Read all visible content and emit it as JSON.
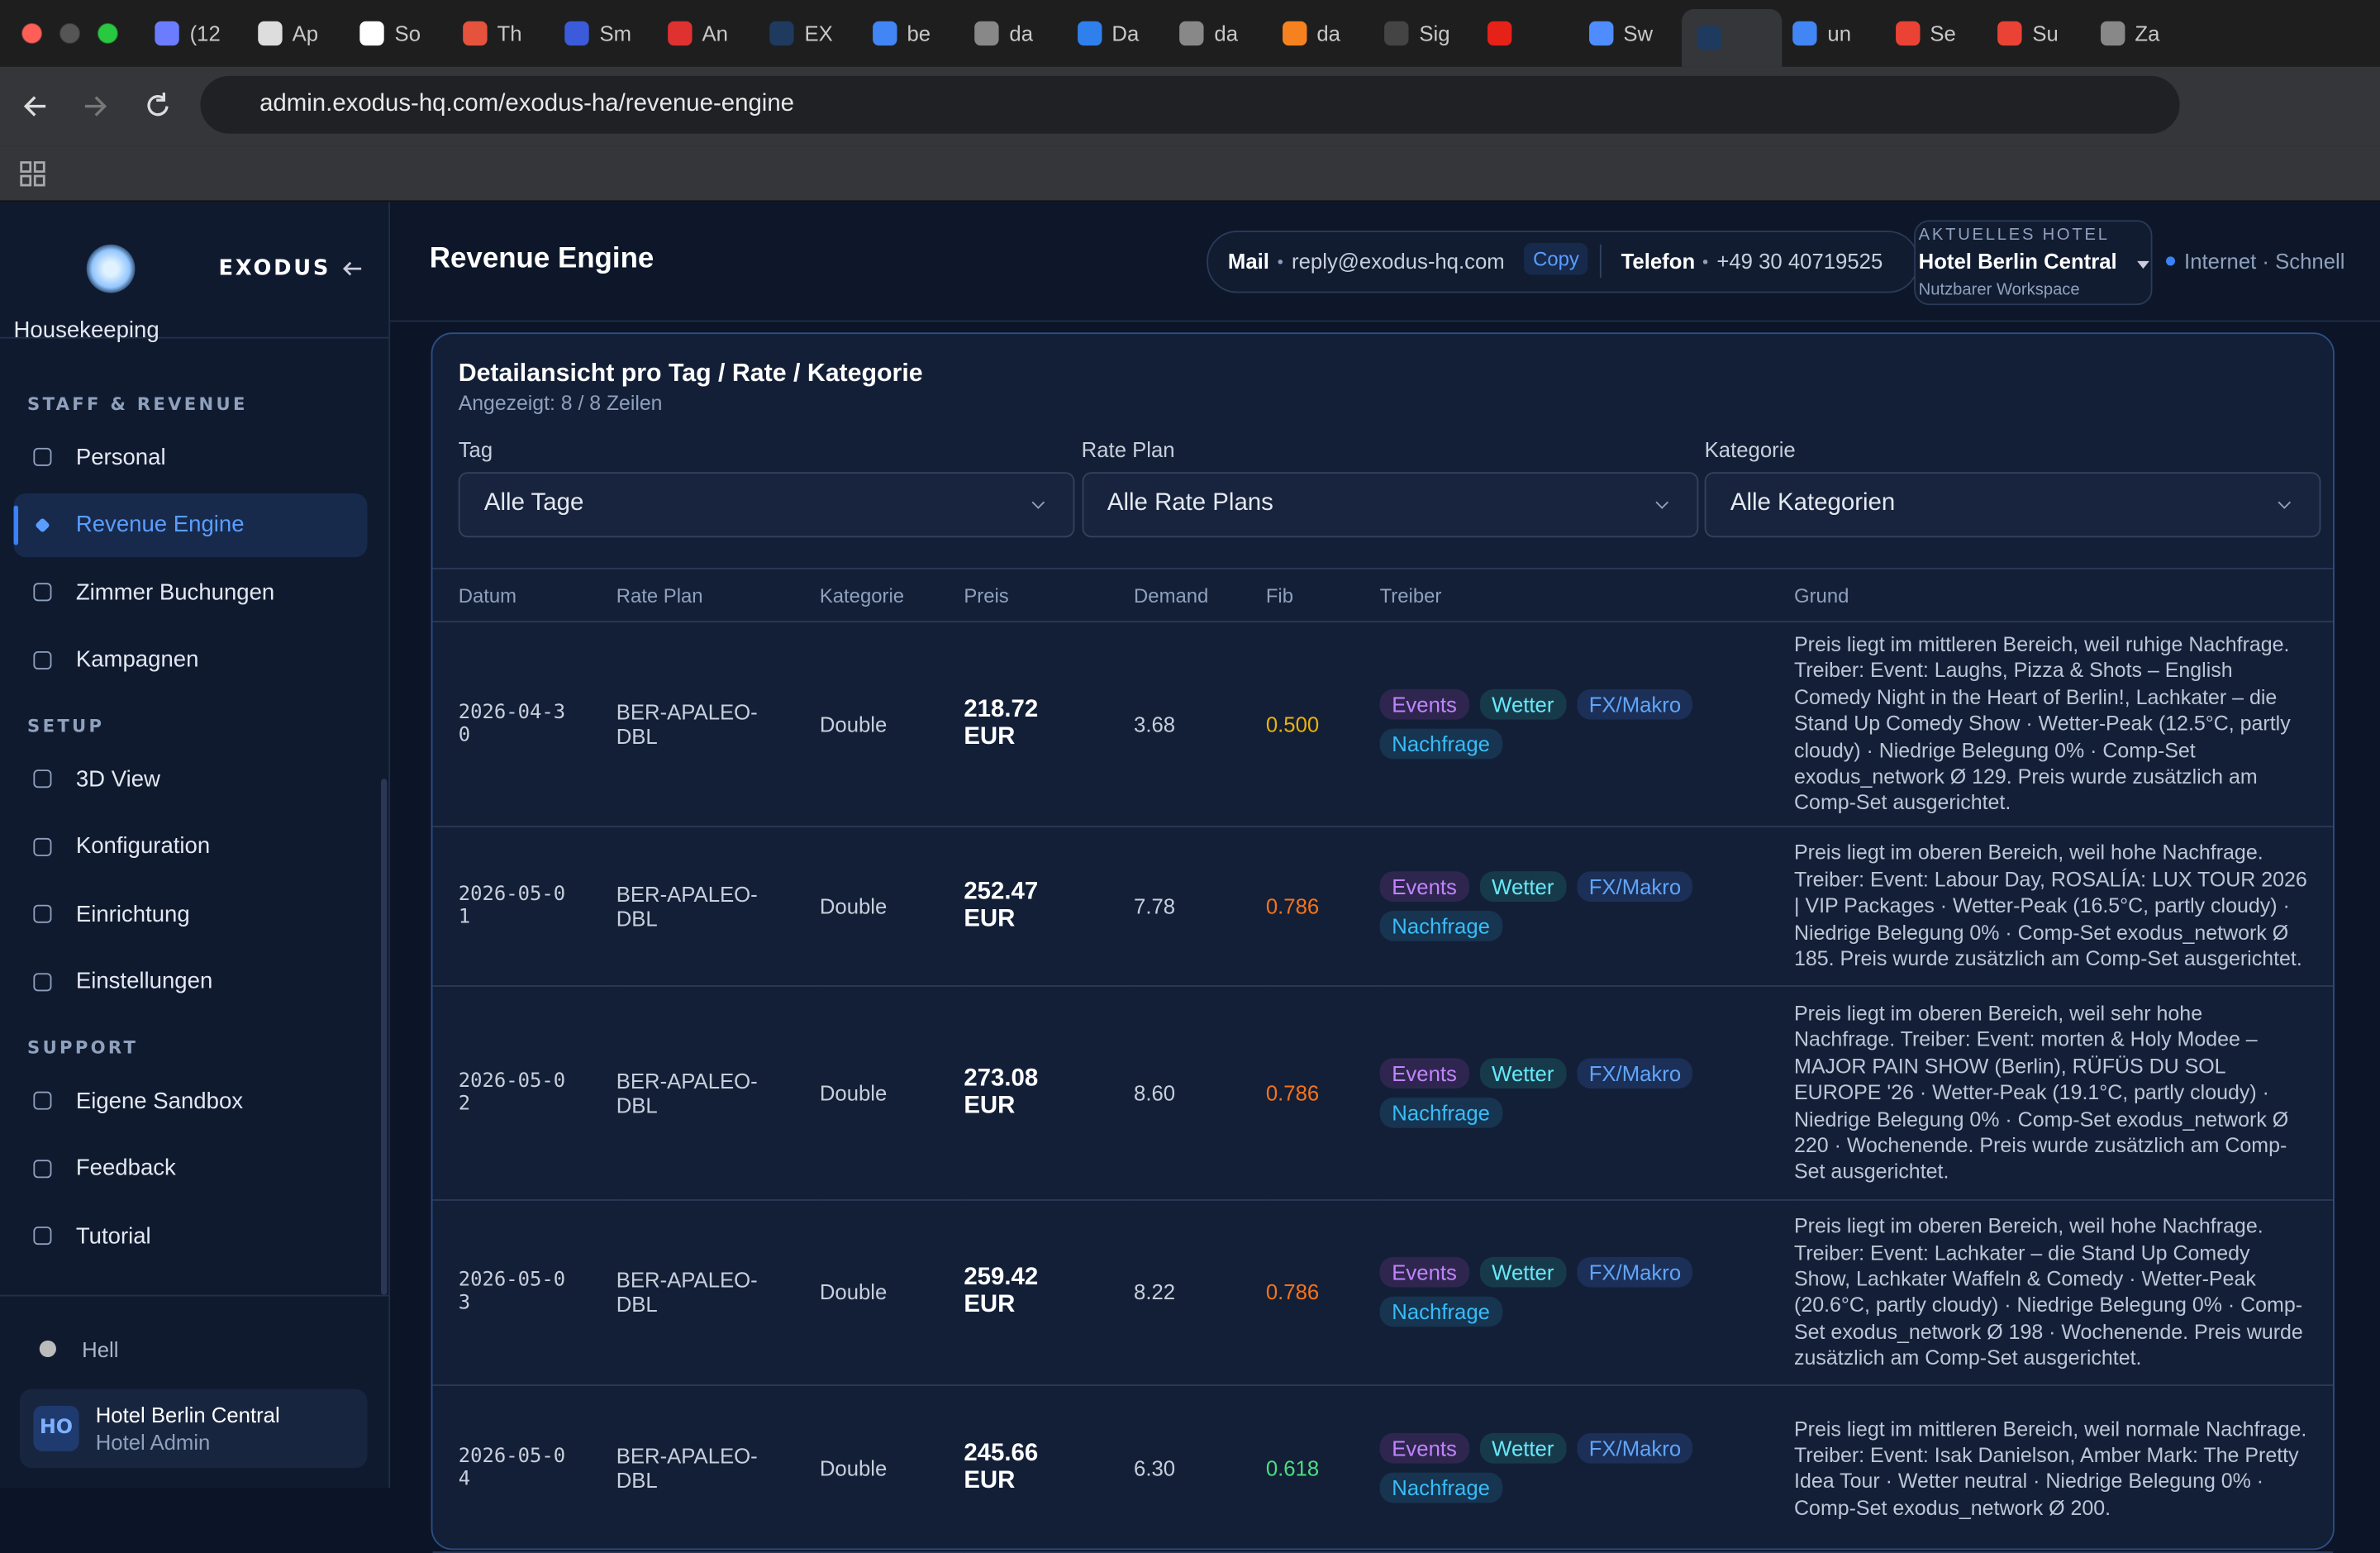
{
  "browser": {
    "tabs": [
      "(12",
      "Ap",
      "So",
      "Th",
      "Sm",
      "An",
      "EX",
      "be",
      "da",
      "Da",
      "da",
      "da",
      "Sig",
      "Sw",
      "un",
      "Se",
      "Su",
      "Za"
    ],
    "url": "admin.exodus-hq.com/exodus-ha/revenue-engine"
  },
  "sidebar": {
    "brand": "EXODUS",
    "cut_item": "Housekeeping",
    "sections": [
      {
        "title": "STAFF & REVENUE",
        "items": [
          "Personal",
          "Revenue Engine",
          "Zimmer Buchungen",
          "Kampagnen"
        ]
      },
      {
        "title": "SETUP",
        "items": [
          "3D View",
          "Konfiguration",
          "Einrichtung",
          "Einstellungen"
        ]
      },
      {
        "title": "SUPPORT",
        "items": [
          "Eigene Sandbox",
          "Feedback",
          "Tutorial"
        ]
      }
    ],
    "active": "Revenue Engine",
    "theme": "Hell",
    "user": {
      "initials": "HO",
      "name": "Hotel Berlin Central",
      "role": "Hotel Admin"
    }
  },
  "header": {
    "title": "Revenue Engine",
    "mail_label": "Mail",
    "mail": "reply@exodus-hq.com",
    "copy": "Copy",
    "phone_label": "Telefon",
    "phone": "+49 30 40719525",
    "hotel_label": "AKTUELLES HOTEL",
    "hotel": "Hotel Berlin Central",
    "workspace": "Nutzbarer Workspace",
    "status": "Internet · Schnell"
  },
  "card": {
    "title": "Detailansicht pro Tag / Rate / Kategorie",
    "subtitle": "Angezeigt: 8 / 8 Zeilen",
    "filters": [
      {
        "label": "Tag",
        "value": "Alle Tage"
      },
      {
        "label": "Rate Plan",
        "value": "Alle Rate Plans"
      },
      {
        "label": "Kategorie",
        "value": "Alle Kategorien"
      }
    ],
    "columns": [
      "Datum",
      "Rate Plan",
      "Kategorie",
      "Preis",
      "Demand",
      "Fib",
      "Treiber",
      "Grund"
    ],
    "rows": [
      {
        "date": "2026-04-30",
        "rate_plan": "BER-APALEO-DBL",
        "category": "Double",
        "price": "218.72 EUR",
        "demand": "3.68",
        "fib": "0.500",
        "fib_color": "#eab308",
        "drivers": [
          "Events",
          "Wetter",
          "FX/Makro",
          "Nachfrage"
        ],
        "reason": "Preis liegt im mittleren Bereich, weil ruhige Nachfrage. Treiber: Event: Laughs, Pizza & Shots – English Comedy Night in the Heart of Berlin!, Lachkater – die Stand Up Comedy Show · Wetter-Peak (12.5°C, partly cloudy) · Niedrige Belegung 0% · Comp-Set exodus_network Ø 129. Preis wurde zusätzlich am Comp-Set ausgerichtet."
      },
      {
        "date": "2026-05-01",
        "rate_plan": "BER-APALEO-DBL",
        "category": "Double",
        "price": "252.47 EUR",
        "demand": "7.78",
        "fib": "0.786",
        "fib_color": "#f97316",
        "drivers": [
          "Events",
          "Wetter",
          "FX/Makro",
          "Nachfrage"
        ],
        "reason": "Preis liegt im oberen Bereich, weil hohe Nachfrage. Treiber: Event: Labour Day, ROSALÍA: LUX TOUR 2026 | VIP Packages · Wetter-Peak (16.5°C, partly cloudy) · Niedrige Belegung 0% · Comp-Set exodus_network Ø 185. Preis wurde zusätzlich am Comp-Set ausgerichtet."
      },
      {
        "date": "2026-05-02",
        "rate_plan": "BER-APALEO-DBL",
        "category": "Double",
        "price": "273.08 EUR",
        "demand": "8.60",
        "fib": "0.786",
        "fib_color": "#f97316",
        "drivers": [
          "Events",
          "Wetter",
          "FX/Makro",
          "Nachfrage"
        ],
        "reason": "Preis liegt im oberen Bereich, weil sehr hohe Nachfrage. Treiber: Event: morten & Holy Modee – MAJOR PAIN SHOW (Berlin), RÜFÜS DU SOL EUROPE '26 · Wetter-Peak (19.1°C, partly cloudy) · Niedrige Belegung 0% · Comp-Set exodus_network Ø 220 · Wochenende. Preis wurde zusätzlich am Comp-Set ausgerichtet."
      },
      {
        "date": "2026-05-03",
        "rate_plan": "BER-APALEO-DBL",
        "category": "Double",
        "price": "259.42 EUR",
        "demand": "8.22",
        "fib": "0.786",
        "fib_color": "#f97316",
        "drivers": [
          "Events",
          "Wetter",
          "FX/Makro",
          "Nachfrage"
        ],
        "reason": "Preis liegt im oberen Bereich, weil hohe Nachfrage. Treiber: Event: Lachkater – die Stand Up Comedy Show, Lachkater Waffeln & Comedy · Wetter-Peak (20.6°C, partly cloudy) · Niedrige Belegung 0% · Comp-Set exodus_network Ø 198 · Wochenende. Preis wurde zusätzlich am Comp-Set ausgerichtet."
      },
      {
        "date": "2026-05-04",
        "rate_plan": "BER-APALEO-DBL",
        "category": "Double",
        "price": "245.66 EUR",
        "demand": "6.30",
        "fib": "0.618",
        "fib_color": "#4ade80",
        "drivers": [
          "Events",
          "Wetter",
          "FX/Makro",
          "Nachfrage"
        ],
        "reason": "Preis liegt im mittleren Bereich, weil normale Nachfrage. Treiber: Event: Isak Danielson, Amber Mark: The Pretty Idea Tour · Wetter neutral · Niedrige Belegung 0% · Comp-Set exodus_network Ø 200."
      }
    ]
  }
}
